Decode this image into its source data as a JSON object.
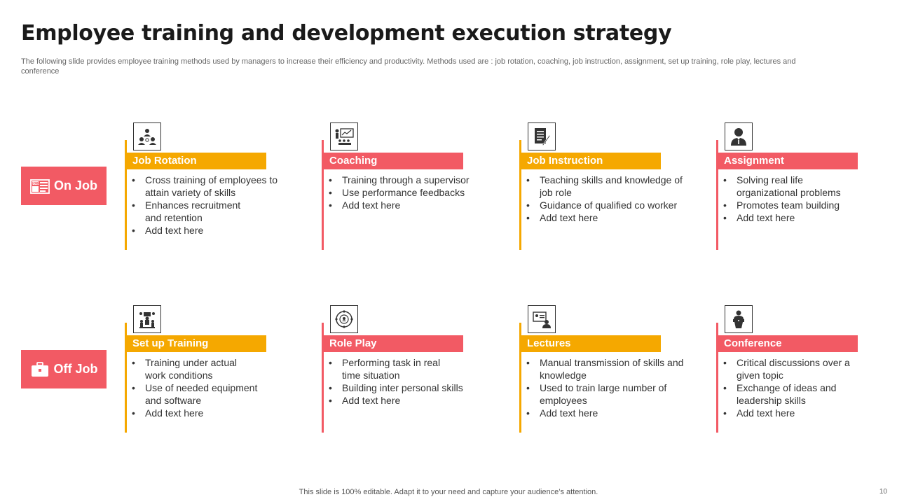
{
  "title": "Employee training and development execution strategy",
  "subtitle": "The following slide provides employee training methods used by managers to increase their efficiency and productivity.  Methods used are : job rotation, coaching, job instruction, assignment, set up training, role play, lectures and conference",
  "colors": {
    "yellow": "#f5a800",
    "red": "#f25a64"
  },
  "sections": [
    {
      "label": "On Job",
      "icon": "job-board-icon",
      "cards": [
        {
          "title": "Job Rotation",
          "icon": "team-rotation-icon",
          "color": "yellow",
          "bullets": [
            "Cross training of employees to attain variety of skills",
            "Enhances recruitment and retention",
            "Add text here"
          ]
        },
        {
          "title": "Coaching",
          "icon": "presentation-audience-icon",
          "color": "red",
          "bullets": [
            "Training through a supervisor",
            "Use performance feedbacks",
            "Add text here"
          ]
        },
        {
          "title": "Job Instruction",
          "icon": "document-pen-icon",
          "color": "yellow",
          "bullets": [
            "Teaching skills and knowledge of job role",
            "Guidance of qualified  co worker",
            "Add  text here"
          ]
        },
        {
          "title": "Assignment",
          "icon": "businessman-icon",
          "color": "red",
          "bullets": [
            "Solving real life organizational problems",
            "Promotes team building",
            "Add text here"
          ]
        }
      ]
    },
    {
      "label": "Off Job",
      "icon": "briefcase-icon",
      "cards": [
        {
          "title": "Set up Training",
          "icon": "training-setup-icon",
          "color": "yellow",
          "bullets": [
            "Training under actual work conditions",
            "Use of  needed equipment and software",
            "Add text here"
          ]
        },
        {
          "title": "Role Play",
          "icon": "role-circle-icon",
          "color": "red",
          "bullets": [
            "Performing task in real time situation",
            "Building inter personal skills",
            "Add text here"
          ]
        },
        {
          "title": "Lectures",
          "icon": "lecture-screen-icon",
          "color": "yellow",
          "bullets": [
            "Manual transmission of skills and knowledge",
            "Used to train large number of employees",
            "Add text here"
          ]
        },
        {
          "title": "Conference",
          "icon": "podium-speaker-icon",
          "color": "red",
          "bullets": [
            "Critical discussions over a given topic",
            "Exchange of ideas and leadership skills",
            "Add text here"
          ]
        }
      ]
    }
  ],
  "footer": "This slide is 100% editable. Adapt it to your need and capture your audience’s attention.",
  "page_number": "10"
}
